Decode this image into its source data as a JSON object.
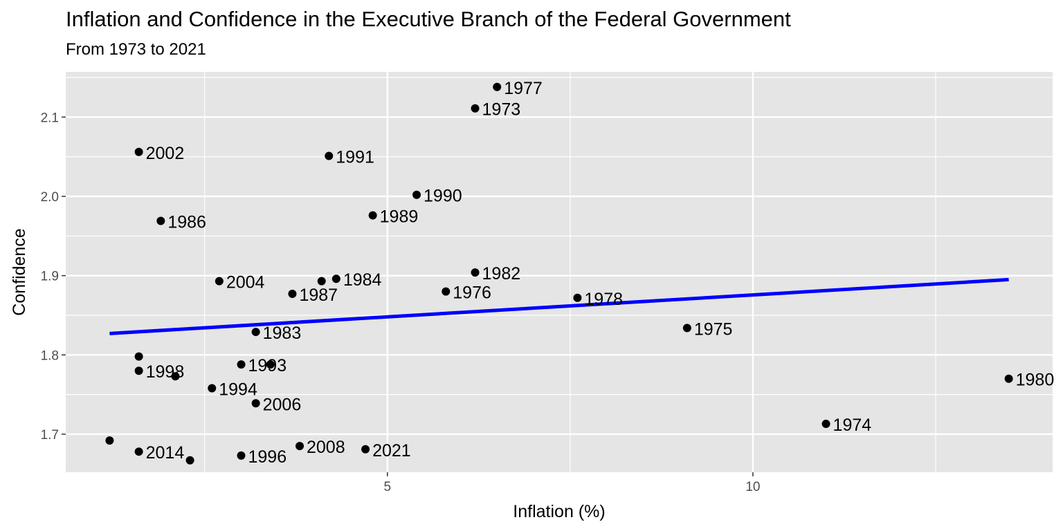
{
  "chart_data": {
    "type": "scatter",
    "title": "Inflation and Confidence in the Executive Branch of the Federal Government",
    "subtitle": "From 1973 to 2021",
    "xlabel": "Inflation (%)",
    "ylabel": "Confidence",
    "xlim": [
      0.6,
      14.1
    ],
    "ylim": [
      1.652,
      2.157
    ],
    "xticks": [
      5,
      10
    ],
    "yticks": [
      1.7,
      1.8,
      1.9,
      2.0,
      2.1
    ],
    "ytick_labels": [
      "1.7",
      "1.8",
      "1.9",
      "2.0",
      "2.1"
    ],
    "grid": true,
    "points": [
      {
        "label": "1977",
        "x": 6.5,
        "y": 2.138
      },
      {
        "label": "1973",
        "x": 6.2,
        "y": 2.111
      },
      {
        "label": "2002",
        "x": 1.6,
        "y": 2.056
      },
      {
        "label": "1991",
        "x": 4.2,
        "y": 2.051
      },
      {
        "label": "1990",
        "x": 5.4,
        "y": 2.002
      },
      {
        "label": "1989",
        "x": 4.8,
        "y": 1.976
      },
      {
        "label": "1986",
        "x": 1.9,
        "y": 1.969
      },
      {
        "label": "1982",
        "x": 6.2,
        "y": 1.904
      },
      {
        "label": "1984",
        "x": 4.3,
        "y": 1.896
      },
      {
        "label": "",
        "x": 4.1,
        "y": 1.893
      },
      {
        "label": "2004",
        "x": 2.7,
        "y": 1.893
      },
      {
        "label": "1976",
        "x": 5.8,
        "y": 1.88
      },
      {
        "label": "1987",
        "x": 3.7,
        "y": 1.877
      },
      {
        "label": "1978",
        "x": 7.6,
        "y": 1.872
      },
      {
        "label": "1975",
        "x": 9.1,
        "y": 1.834
      },
      {
        "label": "1983",
        "x": 3.2,
        "y": 1.829
      },
      {
        "label": "",
        "x": 1.6,
        "y": 1.798
      },
      {
        "label": "1993",
        "x": 3.0,
        "y": 1.788
      },
      {
        "label": "",
        "x": 3.4,
        "y": 1.788
      },
      {
        "label": "1998",
        "x": 1.6,
        "y": 1.78
      },
      {
        "label": "",
        "x": 2.1,
        "y": 1.773
      },
      {
        "label": "1980",
        "x": 13.5,
        "y": 1.77
      },
      {
        "label": "1994",
        "x": 2.6,
        "y": 1.758
      },
      {
        "label": "2006",
        "x": 3.2,
        "y": 1.739
      },
      {
        "label": "1974",
        "x": 11.0,
        "y": 1.713
      },
      {
        "label": "",
        "x": 1.2,
        "y": 1.692
      },
      {
        "label": "2008",
        "x": 3.8,
        "y": 1.685
      },
      {
        "label": "2021",
        "x": 4.7,
        "y": 1.681
      },
      {
        "label": "2014",
        "x": 1.6,
        "y": 1.678
      },
      {
        "label": "1996",
        "x": 3.0,
        "y": 1.673
      },
      {
        "label": "",
        "x": 2.3,
        "y": 1.667
      }
    ],
    "trend_line": {
      "x": [
        1.2,
        13.5
      ],
      "y": [
        1.827,
        1.895
      ],
      "color": "#0000ff"
    },
    "colors": {
      "panel": "#e5e5e5",
      "grid": "#ffffff",
      "point": "#000000"
    }
  }
}
